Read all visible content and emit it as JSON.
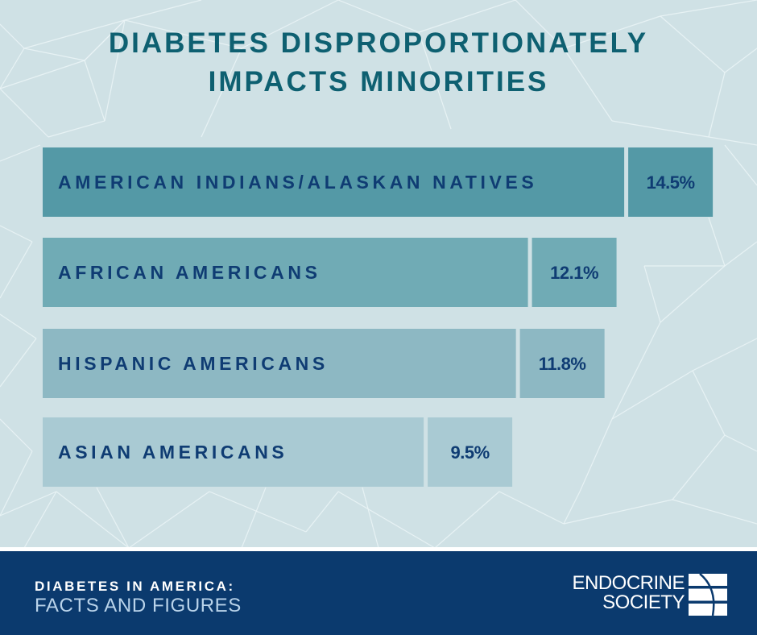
{
  "title": {
    "line1": "DIABETES DISPROPORTIONATELY",
    "line2": "IMPACTS MINORITIES"
  },
  "chart_data": {
    "type": "bar",
    "orientation": "horizontal",
    "title": "DIABETES DISPROPORTIONATELY IMPACTS MINORITIES",
    "xlabel": "",
    "ylabel": "",
    "categories": [
      "AMERICAN INDIANS/ALASKAN NATIVES",
      "AFRICAN AMERICANS",
      "HISPANIC AMERICANS",
      "ASIAN AMERICANS"
    ],
    "values": [
      14.5,
      12.1,
      11.8,
      9.5
    ],
    "value_labels": [
      "14.5%",
      "12.1%",
      "11.8%",
      "9.5%"
    ],
    "unit": "%",
    "bar_colors": [
      "#5499a6",
      "#70abb5",
      "#8db8c3",
      "#a9cad3"
    ],
    "grid": false,
    "legend": "none"
  },
  "colors": {
    "background": "#cfe1e5",
    "title": "#0e6071",
    "label_text": "#0f3c73",
    "footer": "#0b3a6e"
  },
  "footer": {
    "title": "DIABETES IN AMERICA:",
    "subtitle": "FACTS AND FIGURES",
    "logo_line1": "ENDOCRINE",
    "logo_line2": "SOCIETY",
    "logo_icon": "endocrine-society-logo-icon"
  }
}
